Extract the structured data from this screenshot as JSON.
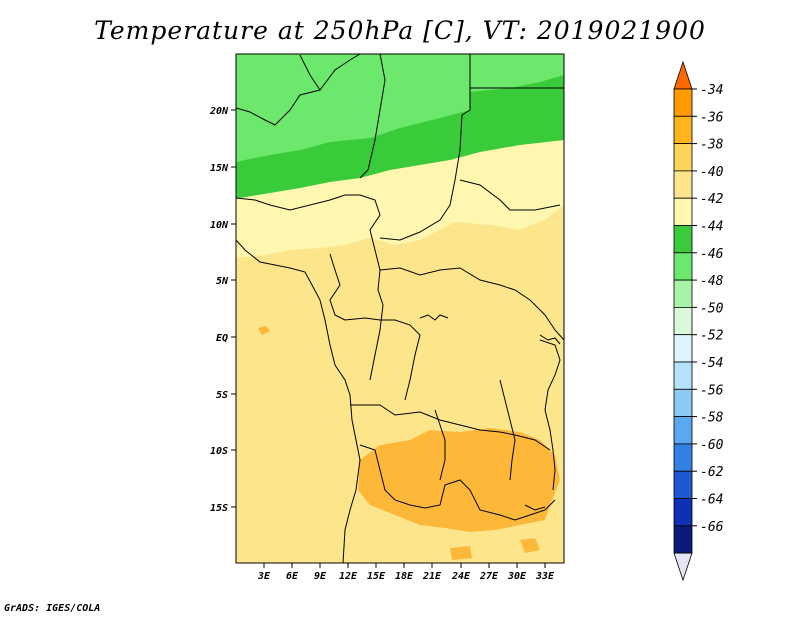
{
  "title": "Temperature at 250hPa [C], VT: 2019021900",
  "credit": "GrADS: IGES/COLA",
  "map": {
    "lon_ticks": [
      "3E",
      "6E",
      "9E",
      "12E",
      "15E",
      "18E",
      "21E",
      "24E",
      "27E",
      "30E",
      "33E"
    ],
    "lat_ticks": [
      "20N",
      "15N",
      "10N",
      "5N",
      "EQ",
      "5S",
      "10S",
      "15S"
    ]
  },
  "colorbar": {
    "labels": [
      "-34",
      "-36",
      "-38",
      "-40",
      "-42",
      "-44",
      "-46",
      "-48",
      "-50",
      "-52",
      "-54",
      "-56",
      "-58",
      "-60",
      "-62",
      "-64",
      "-66"
    ],
    "colors": [
      "#ff6a00",
      "#ff9a00",
      "#ffb41e",
      "#fdd35a",
      "#fde58c",
      "#fff7b0",
      "#3acb3a",
      "#6ce86c",
      "#a6f5a6",
      "#daf9da",
      "#def6ff",
      "#b4e2f9",
      "#8ccaf5",
      "#5aa9f0",
      "#3282e6",
      "#1c5ad2",
      "#0d30b4",
      "#0a1a7a",
      "#e4e4f4"
    ]
  }
}
